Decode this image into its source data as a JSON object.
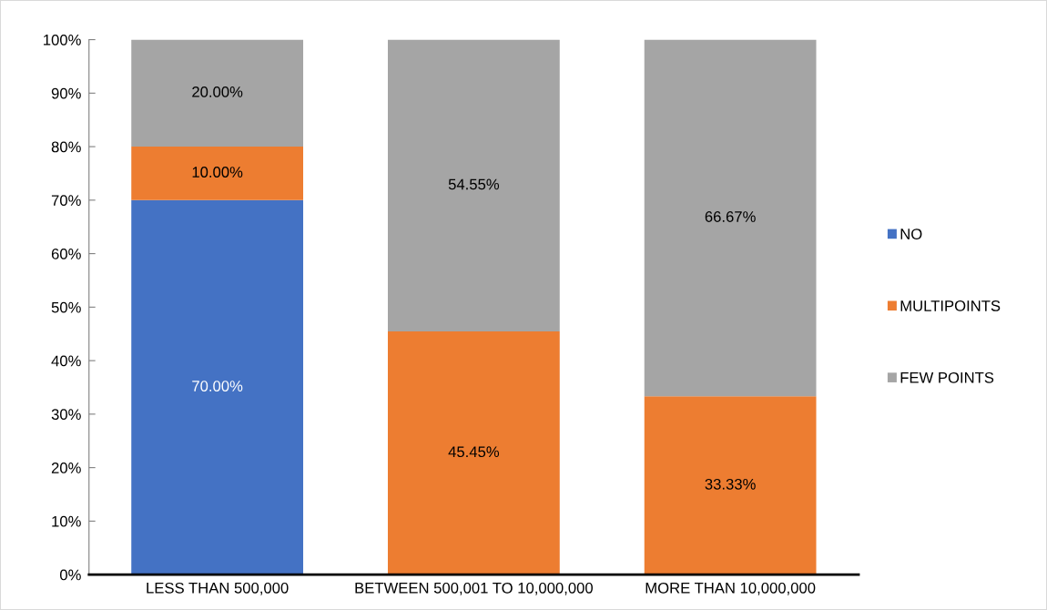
{
  "chart_data": {
    "type": "bar",
    "stacked": true,
    "categories": [
      "LESS THAN 500,000",
      "BETWEEN 500,001 TO 10,000,000",
      "MORE THAN 10,000,000"
    ],
    "series": [
      {
        "name": "NO",
        "color": "#4472c4",
        "values": [
          70,
          0,
          0
        ],
        "value_labels": [
          "70.00%",
          null,
          null
        ]
      },
      {
        "name": "MULTIPOINTS",
        "color": "#ed7d31",
        "values": [
          10,
          45.45,
          33.33
        ],
        "value_labels": [
          "10.00%",
          "45.45%",
          "33.33%"
        ]
      },
      {
        "name": "FEW POINTS",
        "color": "#a5a5a5",
        "values": [
          20,
          54.55,
          66.67
        ],
        "value_labels": [
          "20.00%",
          "54.55%",
          "66.67%"
        ]
      }
    ],
    "ylim": [
      0,
      100
    ],
    "yticks": [
      {
        "value": 0,
        "label": "0%"
      },
      {
        "value": 10,
        "label": "10%"
      },
      {
        "value": 20,
        "label": "20%"
      },
      {
        "value": 30,
        "label": "30%"
      },
      {
        "value": 40,
        "label": "40%"
      },
      {
        "value": 50,
        "label": "50%"
      },
      {
        "value": 60,
        "label": "60%"
      },
      {
        "value": 70,
        "label": "70%"
      },
      {
        "value": 80,
        "label": "80%"
      },
      {
        "value": 90,
        "label": "90%"
      },
      {
        "value": 100,
        "label": "100%"
      }
    ],
    "grid": false,
    "legend": "right"
  }
}
